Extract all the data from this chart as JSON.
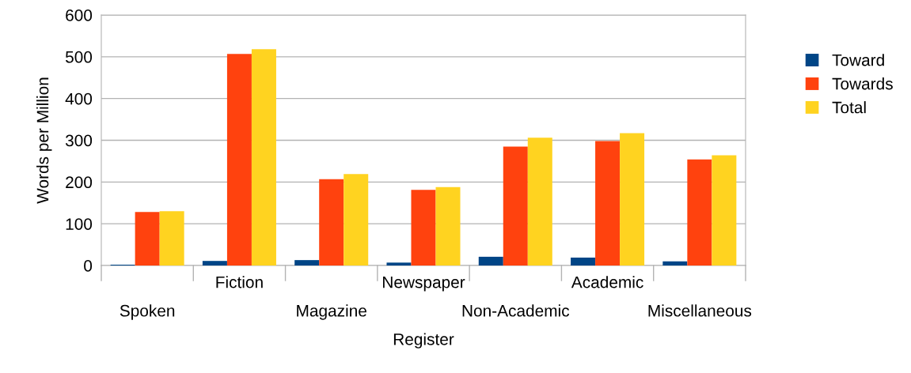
{
  "chart_data": {
    "type": "bar",
    "xlabel": "Register",
    "ylabel": "Words per Million",
    "categories": [
      "Spoken",
      "Fiction",
      "Magazine",
      "Newspaper",
      "Non-Academic",
      "Academic",
      "Miscellaneous"
    ],
    "series": [
      {
        "name": "Toward",
        "color": "#004586",
        "values": [
          2,
          11,
          13,
          7,
          21,
          19,
          10
        ]
      },
      {
        "name": "Towards",
        "color": "#ff420e",
        "values": [
          128,
          507,
          207,
          181,
          285,
          298,
          254
        ]
      },
      {
        "name": "Total",
        "color": "#ffd320",
        "values": [
          130,
          518,
          219,
          188,
          306,
          317,
          264
        ]
      }
    ],
    "ylim": [
      0,
      600
    ],
    "yticks": [
      0,
      100,
      200,
      300,
      400,
      500,
      600
    ],
    "grid": "y",
    "legend": "right"
  }
}
